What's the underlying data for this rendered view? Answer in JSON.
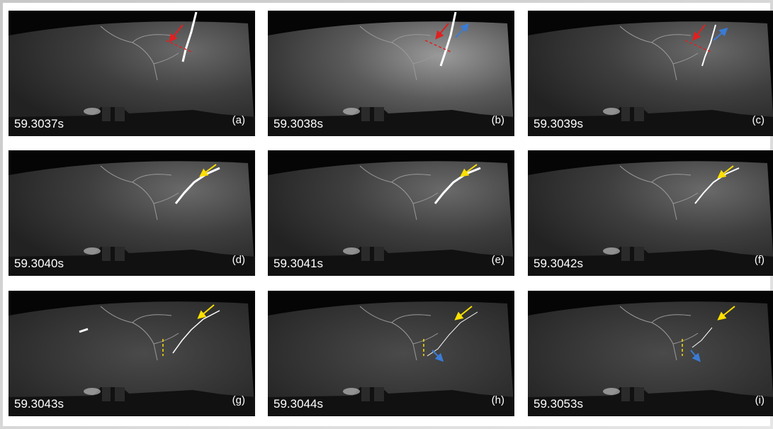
{
  "panels": [
    {
      "time": "59.3037s",
      "label": "(a)"
    },
    {
      "time": "59.3038s",
      "label": "(b)"
    },
    {
      "time": "59.3039s",
      "label": "(c)"
    },
    {
      "time": "59.3040s",
      "label": "(d)"
    },
    {
      "time": "59.3041s",
      "label": "(e)"
    },
    {
      "time": "59.3042s",
      "label": "(f)"
    },
    {
      "time": "59.3043s",
      "label": "(g)"
    },
    {
      "time": "59.3044s",
      "label": "(h)"
    },
    {
      "time": "59.3053s",
      "label": "(i)"
    }
  ]
}
